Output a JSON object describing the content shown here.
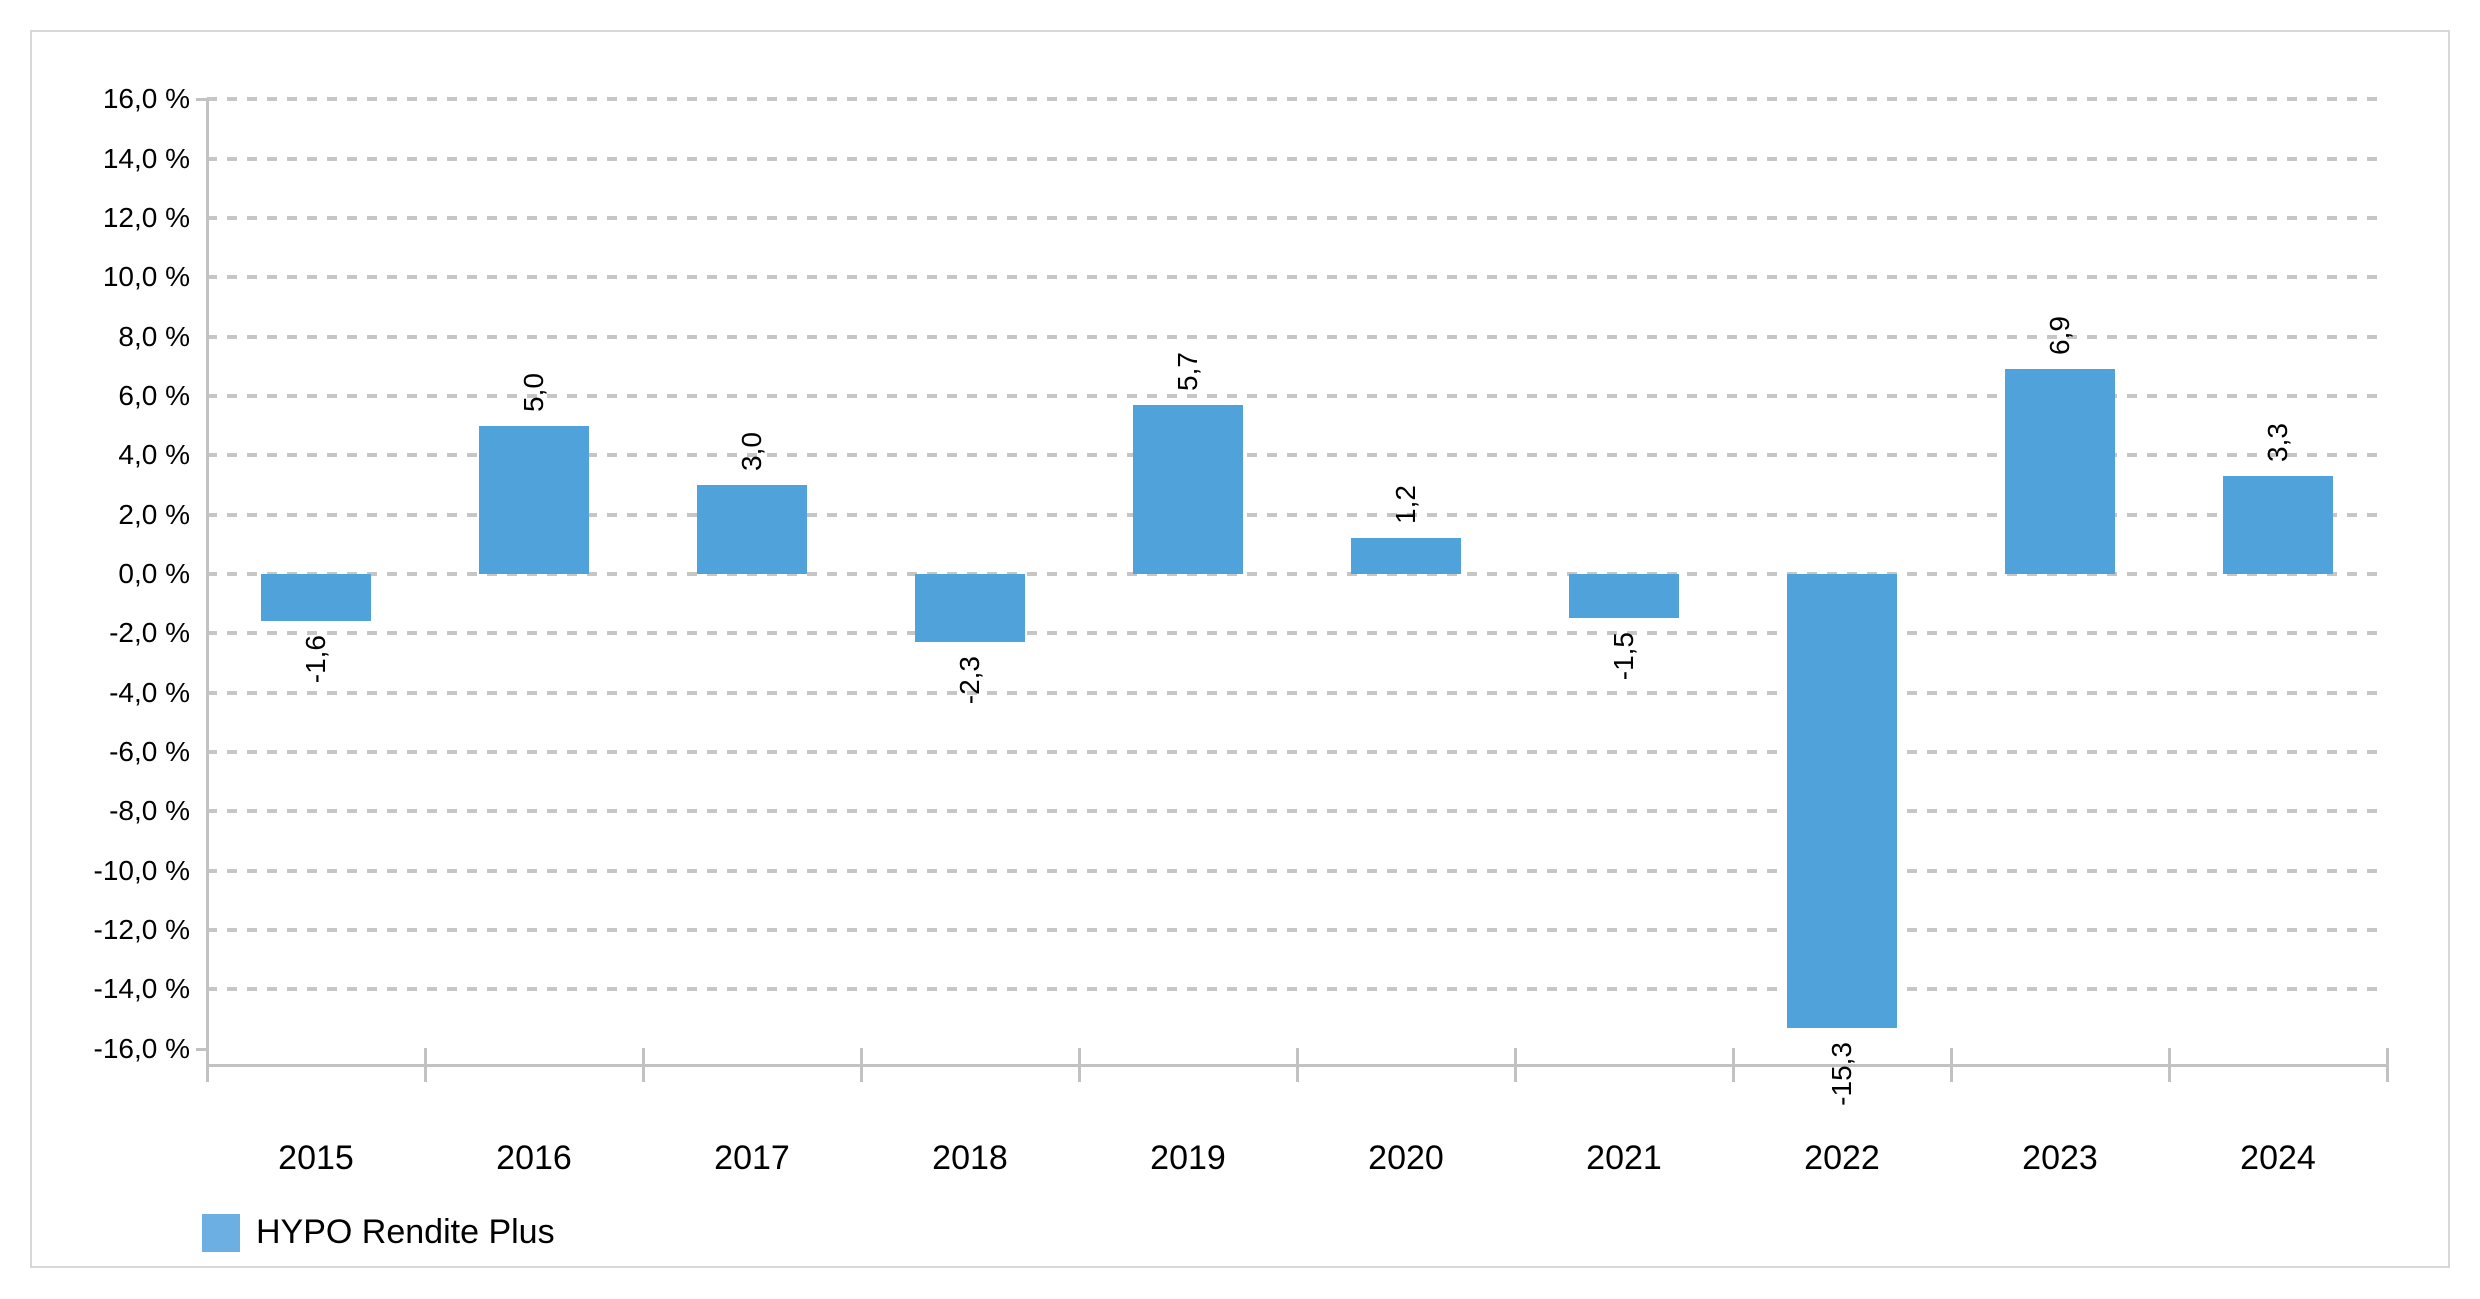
{
  "chart_data": {
    "type": "bar",
    "title": "",
    "xlabel": "",
    "ylabel": "",
    "categories": [
      "2015",
      "2016",
      "2017",
      "2018",
      "2019",
      "2020",
      "2021",
      "2022",
      "2023",
      "2024"
    ],
    "series": [
      {
        "name": "HYPO Rendite Plus",
        "values": [
          -1.6,
          5.0,
          3.0,
          -2.3,
          5.7,
          1.2,
          -1.5,
          -15.3,
          6.9,
          3.3
        ],
        "value_labels": [
          "-1,6",
          "5,0",
          "3,0",
          "-2,3",
          "5,7",
          "1,2",
          "-1,5",
          "-15,3",
          "6,9",
          "3,3"
        ]
      }
    ],
    "ylim": [
      -16,
      16
    ],
    "ytick_step": 2,
    "ytick_labels": [
      "16,0 %",
      "14,0 %",
      "12,0 %",
      "10,0 %",
      "8,0 %",
      "6,0 %",
      "4,0 %",
      "2,0 %",
      "0,0 %",
      "-2,0 %",
      "-4,0 %",
      "-6,0 %",
      "-8,0 %",
      "-10,0 %",
      "-12,0 %",
      "-14,0 %",
      "-16,0 %"
    ],
    "grid": "horizontal-dashed",
    "legend_position": "bottom-left",
    "value_label_rotation": -90,
    "decimal_separator": ","
  },
  "legend": {
    "items": [
      {
        "label": "HYPO Rendite Plus",
        "swatch_color": "#6cafe2"
      }
    ]
  },
  "colors": {
    "bar": "#4fa3da",
    "legend_swatch": "#6cafe2",
    "gridline": "#c6c6c6",
    "axis": "#c2c2c2",
    "text": "#000000",
    "card_border": "#d8d8d8",
    "background": "#ffffff"
  }
}
